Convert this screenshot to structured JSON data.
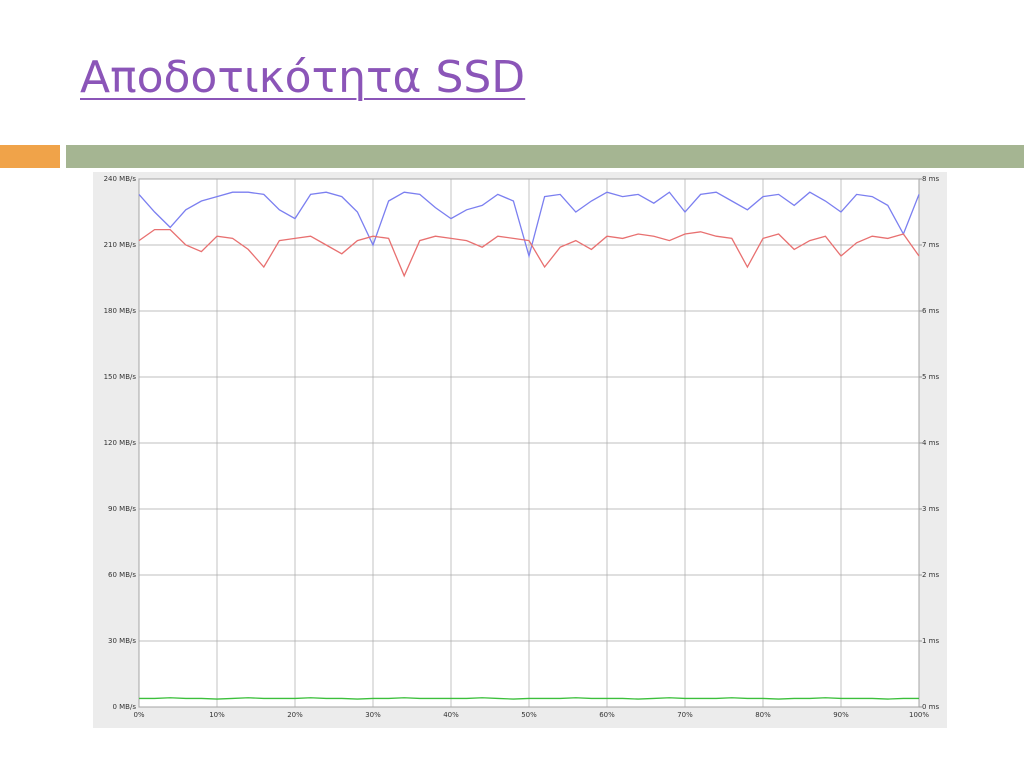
{
  "chart_data": {
    "type": "line",
    "title": "Αποδοτικότητα SSD",
    "x": [
      0,
      2,
      4,
      6,
      8,
      10,
      12,
      14,
      16,
      18,
      20,
      22,
      24,
      26,
      28,
      30,
      32,
      34,
      36,
      38,
      40,
      42,
      44,
      46,
      48,
      50,
      52,
      54,
      56,
      58,
      60,
      62,
      64,
      66,
      68,
      70,
      72,
      74,
      76,
      78,
      80,
      82,
      84,
      86,
      88,
      90,
      92,
      94,
      96,
      98,
      100
    ],
    "xlim": [
      0,
      100
    ],
    "xticks": [
      {
        "value": 0,
        "label": "0%"
      },
      {
        "value": 10,
        "label": "10%"
      },
      {
        "value": 20,
        "label": "20%"
      },
      {
        "value": 30,
        "label": "30%"
      },
      {
        "value": 40,
        "label": "40%"
      },
      {
        "value": 50,
        "label": "50%"
      },
      {
        "value": 60,
        "label": "60%"
      },
      {
        "value": 70,
        "label": "70%"
      },
      {
        "value": 80,
        "label": "80%"
      },
      {
        "value": 90,
        "label": "90%"
      },
      {
        "value": 100,
        "label": "100%"
      }
    ],
    "ylim": [
      0,
      240
    ],
    "yticks": [
      {
        "value": 0,
        "label": "0 MB/s"
      },
      {
        "value": 30,
        "label": "30 MB/s"
      },
      {
        "value": 60,
        "label": "60 MB/s"
      },
      {
        "value": 90,
        "label": "90 MB/s"
      },
      {
        "value": 120,
        "label": "120 MB/s"
      },
      {
        "value": 150,
        "label": "150 MB/s"
      },
      {
        "value": 180,
        "label": "180 MB/s"
      },
      {
        "value": 210,
        "label": "210 MB/s"
      },
      {
        "value": 240,
        "label": "240 MB/s"
      }
    ],
    "y2lim": [
      0,
      8
    ],
    "y2ticks": [
      {
        "value": 0,
        "label": "0 ms"
      },
      {
        "value": 1,
        "label": "1 ms"
      },
      {
        "value": 2,
        "label": "2 ms"
      },
      {
        "value": 3,
        "label": "3 ms"
      },
      {
        "value": 4,
        "label": "4 ms"
      },
      {
        "value": 5,
        "label": "5 ms"
      },
      {
        "value": 6,
        "label": "6 ms"
      },
      {
        "value": 7,
        "label": "7 ms"
      },
      {
        "value": 8,
        "label": "8 ms"
      }
    ],
    "grid": true,
    "series": [
      {
        "color": "#7b7ff0",
        "values": [
          233,
          225,
          218,
          226,
          230,
          232,
          234,
          234,
          233,
          226,
          222,
          233,
          234,
          232,
          225,
          210,
          230,
          234,
          233,
          227,
          222,
          226,
          228,
          233,
          230,
          205,
          232,
          233,
          225,
          230,
          234,
          232,
          233,
          229,
          234,
          225,
          233,
          234,
          230,
          226,
          232,
          233,
          228,
          234,
          230,
          225,
          233,
          232,
          228,
          215,
          233
        ]
      },
      {
        "color": "#e87070",
        "values": [
          212,
          217,
          217,
          210,
          207,
          214,
          213,
          208,
          200,
          212,
          213,
          214,
          210,
          206,
          212,
          214,
          213,
          196,
          212,
          214,
          213,
          212,
          209,
          214,
          213,
          212,
          200,
          209,
          212,
          208,
          214,
          213,
          215,
          214,
          212,
          215,
          216,
          214,
          213,
          200,
          213,
          215,
          208,
          212,
          214,
          205,
          211,
          214,
          213,
          215,
          205
        ]
      },
      {
        "color": "#3bbf3b",
        "axis": "y2",
        "values": [
          0.13,
          0.13,
          0.14,
          0.13,
          0.13,
          0.12,
          0.13,
          0.14,
          0.13,
          0.13,
          0.13,
          0.14,
          0.13,
          0.13,
          0.12,
          0.13,
          0.13,
          0.14,
          0.13,
          0.13,
          0.13,
          0.13,
          0.14,
          0.13,
          0.12,
          0.13,
          0.13,
          0.13,
          0.14,
          0.13,
          0.13,
          0.13,
          0.12,
          0.13,
          0.14,
          0.13,
          0.13,
          0.13,
          0.14,
          0.13,
          0.13,
          0.12,
          0.13,
          0.13,
          0.14,
          0.13,
          0.13,
          0.13,
          0.12,
          0.13,
          0.13
        ]
      }
    ]
  }
}
